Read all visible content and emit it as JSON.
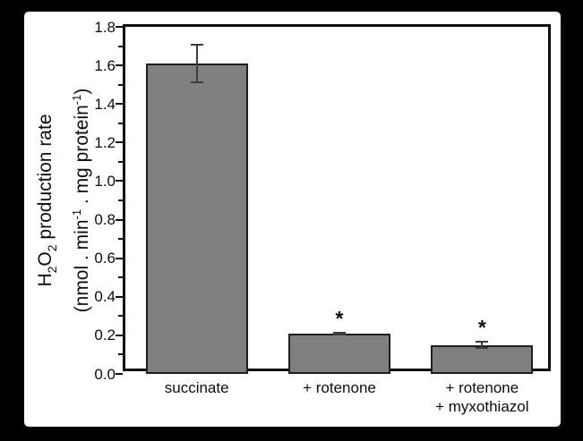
{
  "figure": {
    "background_color": "#000000",
    "panel_color": "#ffffff"
  },
  "y_axis_label": {
    "line1": {
      "p1": "H",
      "s1": "2",
      "p2": "O",
      "s2": "2",
      "p3": " production rate"
    },
    "line2": {
      "p1": "(nmol . min",
      "e1": "-1",
      "p2": " . mg protein",
      "e2": "-1",
      "p3": ")"
    }
  },
  "chart_data": {
    "type": "bar",
    "title": "",
    "xlabel": "",
    "ylabel": "H2O2 production rate (nmol . min-1 . mg protein-1)",
    "categories": [
      "succinate",
      "+ rotenone",
      "+ rotenone + myxothiazol"
    ],
    "category_lines": [
      [
        "succinate"
      ],
      [
        "+ rotenone"
      ],
      [
        "+ rotenone",
        "+ myxothiazol"
      ]
    ],
    "values": [
      1.61,
      0.21,
      0.15
    ],
    "errors": [
      0.1,
      0.01,
      0.02
    ],
    "significance": [
      "",
      "*",
      "*"
    ],
    "ylim": [
      0.0,
      1.8
    ],
    "y_major_ticks": [
      0.0,
      0.2,
      0.4,
      0.6,
      0.8,
      1.0,
      1.2,
      1.4,
      1.6,
      1.8
    ],
    "y_tick_labels": [
      "0.0",
      "0.2",
      "0.4",
      "0.6",
      "0.8",
      "1.0",
      "1.2",
      "1.4",
      "1.6",
      "1.8"
    ],
    "y_minor_ticks": [
      0.1,
      0.3,
      0.5,
      0.7,
      0.9,
      1.1,
      1.3,
      1.5,
      1.7
    ],
    "grid": false,
    "legend": false,
    "bar_fill_color": "#7f7f7f",
    "bar_border_color": "#1f1f1f",
    "axis_color": "#0f0f0f",
    "error_bar_color": "#3d3d3d",
    "text_color": "#0d0d0d"
  }
}
